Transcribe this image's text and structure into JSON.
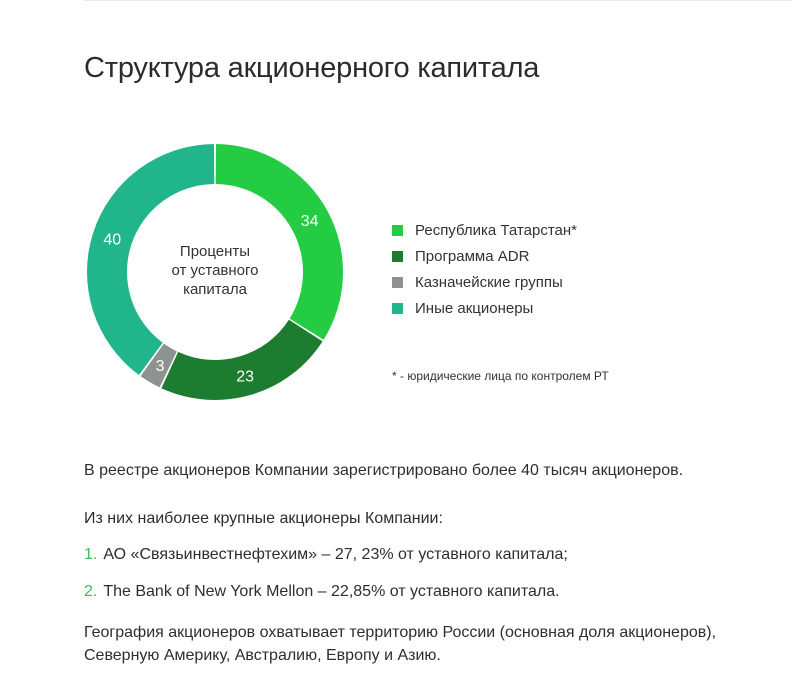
{
  "title": "Структура акционерного капитала",
  "chart_data": {
    "type": "pie",
    "donut": true,
    "center_label_lines": [
      "Проценты",
      "от уставного",
      "капитала"
    ],
    "slices": [
      {
        "label": "Республика Татарстан*",
        "value": 34,
        "color": "#23cc42"
      },
      {
        "label": "Программа ADR",
        "value": 23,
        "color": "#1c7c2f"
      },
      {
        "label": "Казначейские группы",
        "value": 3,
        "color": "#8e9390"
      },
      {
        "label": "Иные акционеры",
        "value": 40,
        "color": "#20b58a"
      }
    ],
    "legend_position": "right"
  },
  "legend": {
    "items": [
      "Республика Татарстан*",
      "Программа ADR",
      "Казначейские группы",
      "Иные акционеры"
    ],
    "footnote": "* - юридические лица по контролем РТ"
  },
  "text": {
    "registry": "В реестре акционеров Компании зарегистрировано более 40 тысяч акционеров.",
    "largest_intro": "Из них наиболее крупные акционеры Компании:",
    "shareholders": [
      {
        "number": "1.",
        "text": "АО «Связьинвестнефтехим» – 27, 23% от уставного капитала;"
      },
      {
        "number": "2.",
        "text": "The Bank of New York Mellon – 22,85% от уставного капитала."
      }
    ],
    "geography_line1": "География акционеров охватывает территорию России (основная доля акционеров),",
    "geography_line2": "Северную Америку, Австралию, Европу и Азию."
  }
}
